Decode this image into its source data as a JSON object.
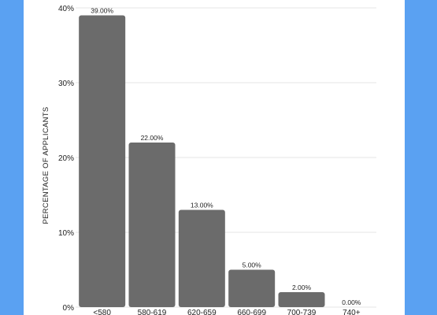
{
  "chart_data": {
    "type": "bar",
    "categories": [
      "<580",
      "580-619",
      "620-659",
      "660-699",
      "700-739",
      "740+"
    ],
    "values": [
      39.0,
      22.0,
      13.0,
      5.0,
      2.0,
      0.0
    ],
    "data_labels": [
      "39.00%",
      "22.00%",
      "13.00%",
      "5.00%",
      "2.00%",
      "0.00%"
    ],
    "title": "",
    "xlabel": "",
    "ylabel": "PERCENTAGE OF APPLICANTS",
    "ylim": [
      0,
      40
    ],
    "yticks": [
      0,
      10,
      20,
      30,
      40
    ],
    "ytick_labels": [
      "0%",
      "10%",
      "20%",
      "30%",
      "40%"
    ],
    "grid": true,
    "bar_color": "#6b6b6b"
  },
  "colors": {
    "frame": "#5aa1f2",
    "panel": "#ffffff",
    "grid": "#e6e6e6"
  }
}
